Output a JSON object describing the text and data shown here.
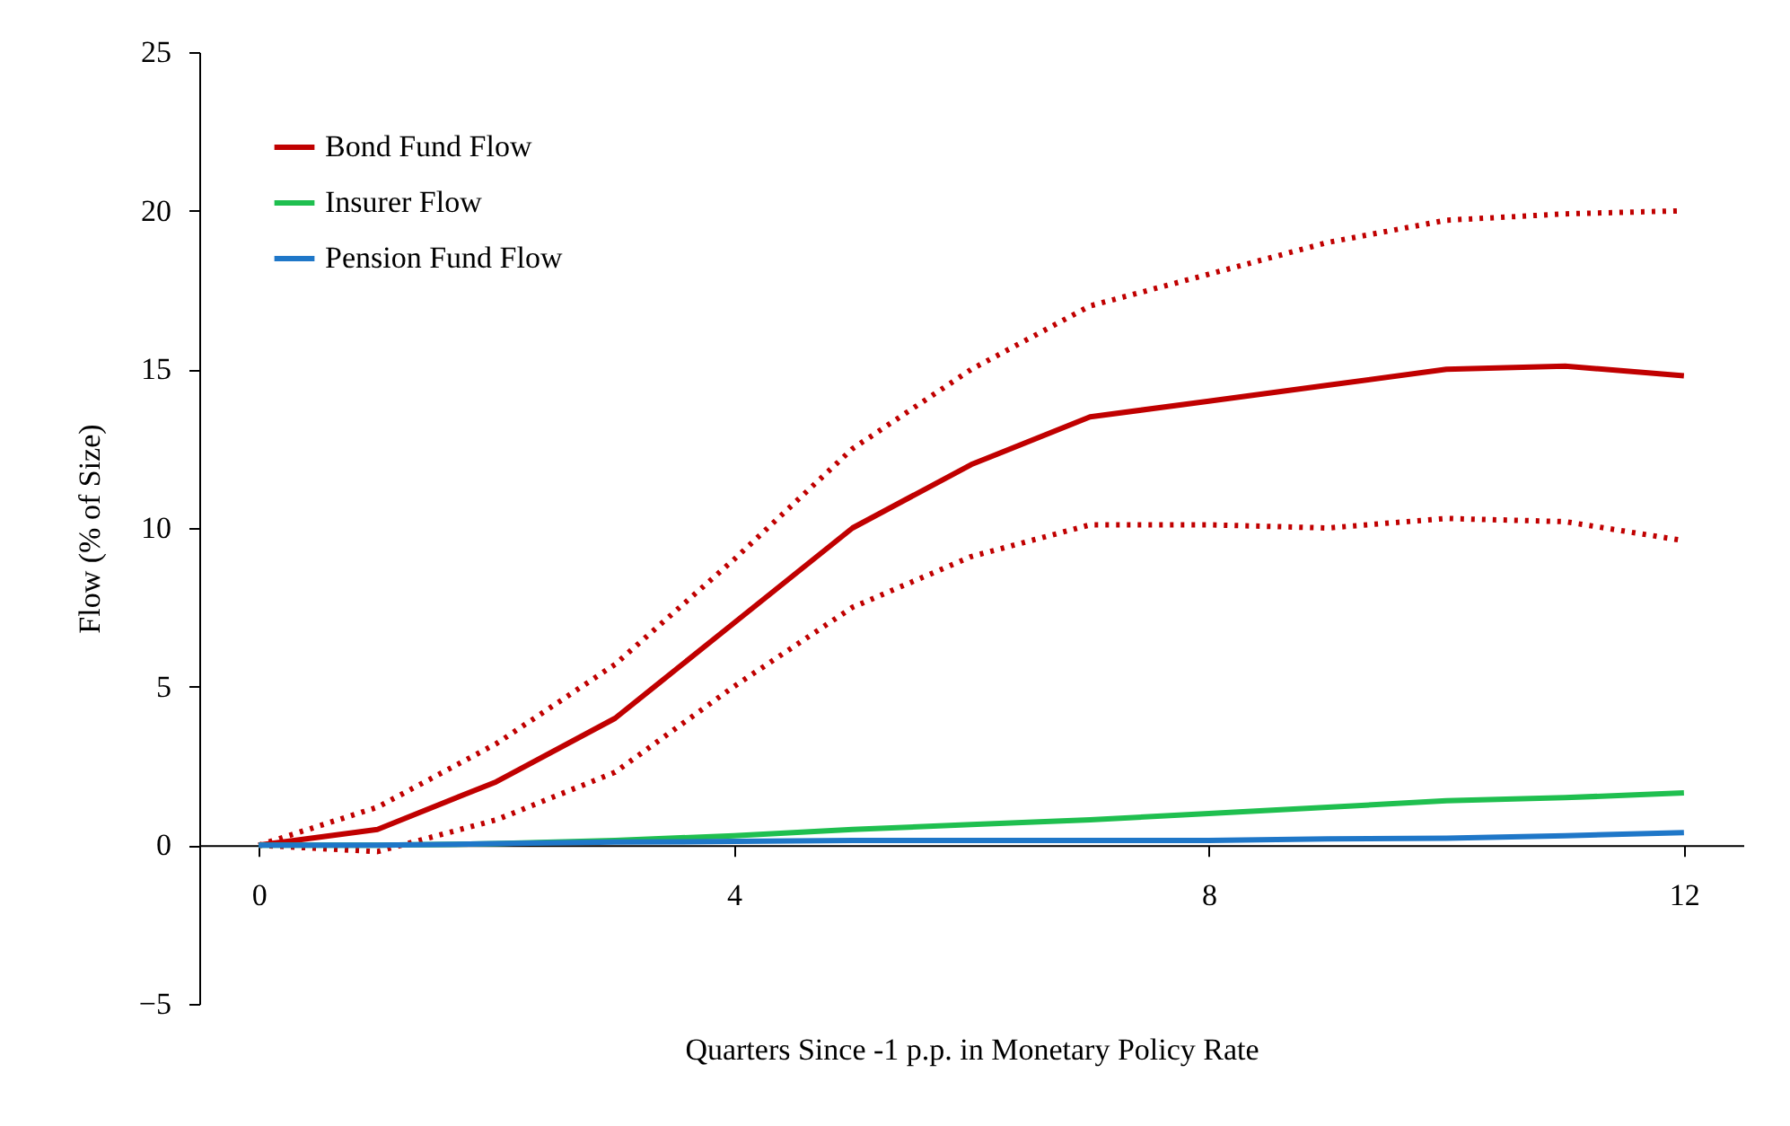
{
  "chart_data": {
    "type": "line",
    "xlabel": "Quarters Since -1 p.p. in Monetary Policy Rate",
    "ylabel": "Flow (% of Size)",
    "x": [
      0,
      1,
      2,
      3,
      4,
      5,
      6,
      7,
      8,
      9,
      10,
      11,
      12
    ],
    "xlim": [
      -0.5,
      12.5
    ],
    "xticks": [
      0,
      4,
      8,
      12
    ],
    "ylim": [
      -5,
      25
    ],
    "yticks": [
      -5,
      0,
      5,
      10,
      15,
      20,
      25
    ],
    "grid": false,
    "legend": "top left",
    "line_style": "solid",
    "series": [
      {
        "name": "Bond Fund Flow",
        "color": "#c00000",
        "values": [
          0,
          0.5,
          2,
          4,
          7,
          10,
          12,
          13.5,
          14,
          14.5,
          15,
          15.1,
          14.8
        ]
      },
      {
        "color": "#c00000",
        "line_style": "dotted",
        "values": [
          0,
          1.2,
          3.2,
          5.7,
          9,
          12.5,
          15,
          17,
          18,
          19,
          19.7,
          19.9,
          20
        ]
      },
      {
        "color": "#c00000",
        "line_style": "dotted",
        "values": [
          0,
          -0.2,
          0.8,
          2.3,
          5,
          7.5,
          9.1,
          10.1,
          10.1,
          10,
          10.3,
          10.2,
          9.6
        ]
      },
      {
        "name": "Insurer Flow",
        "color": "#1fbf4f",
        "values": [
          0,
          0,
          0.05,
          0.15,
          0.3,
          0.5,
          0.65,
          0.8,
          1,
          1.2,
          1.4,
          1.5,
          1.65
        ]
      },
      {
        "name": "Pension Fund Flow",
        "color": "#1f77c8",
        "values": [
          0,
          0,
          0.05,
          0.1,
          0.12,
          0.15,
          0.15,
          0.15,
          0.15,
          0.2,
          0.22,
          0.3,
          0.4
        ]
      }
    ]
  }
}
